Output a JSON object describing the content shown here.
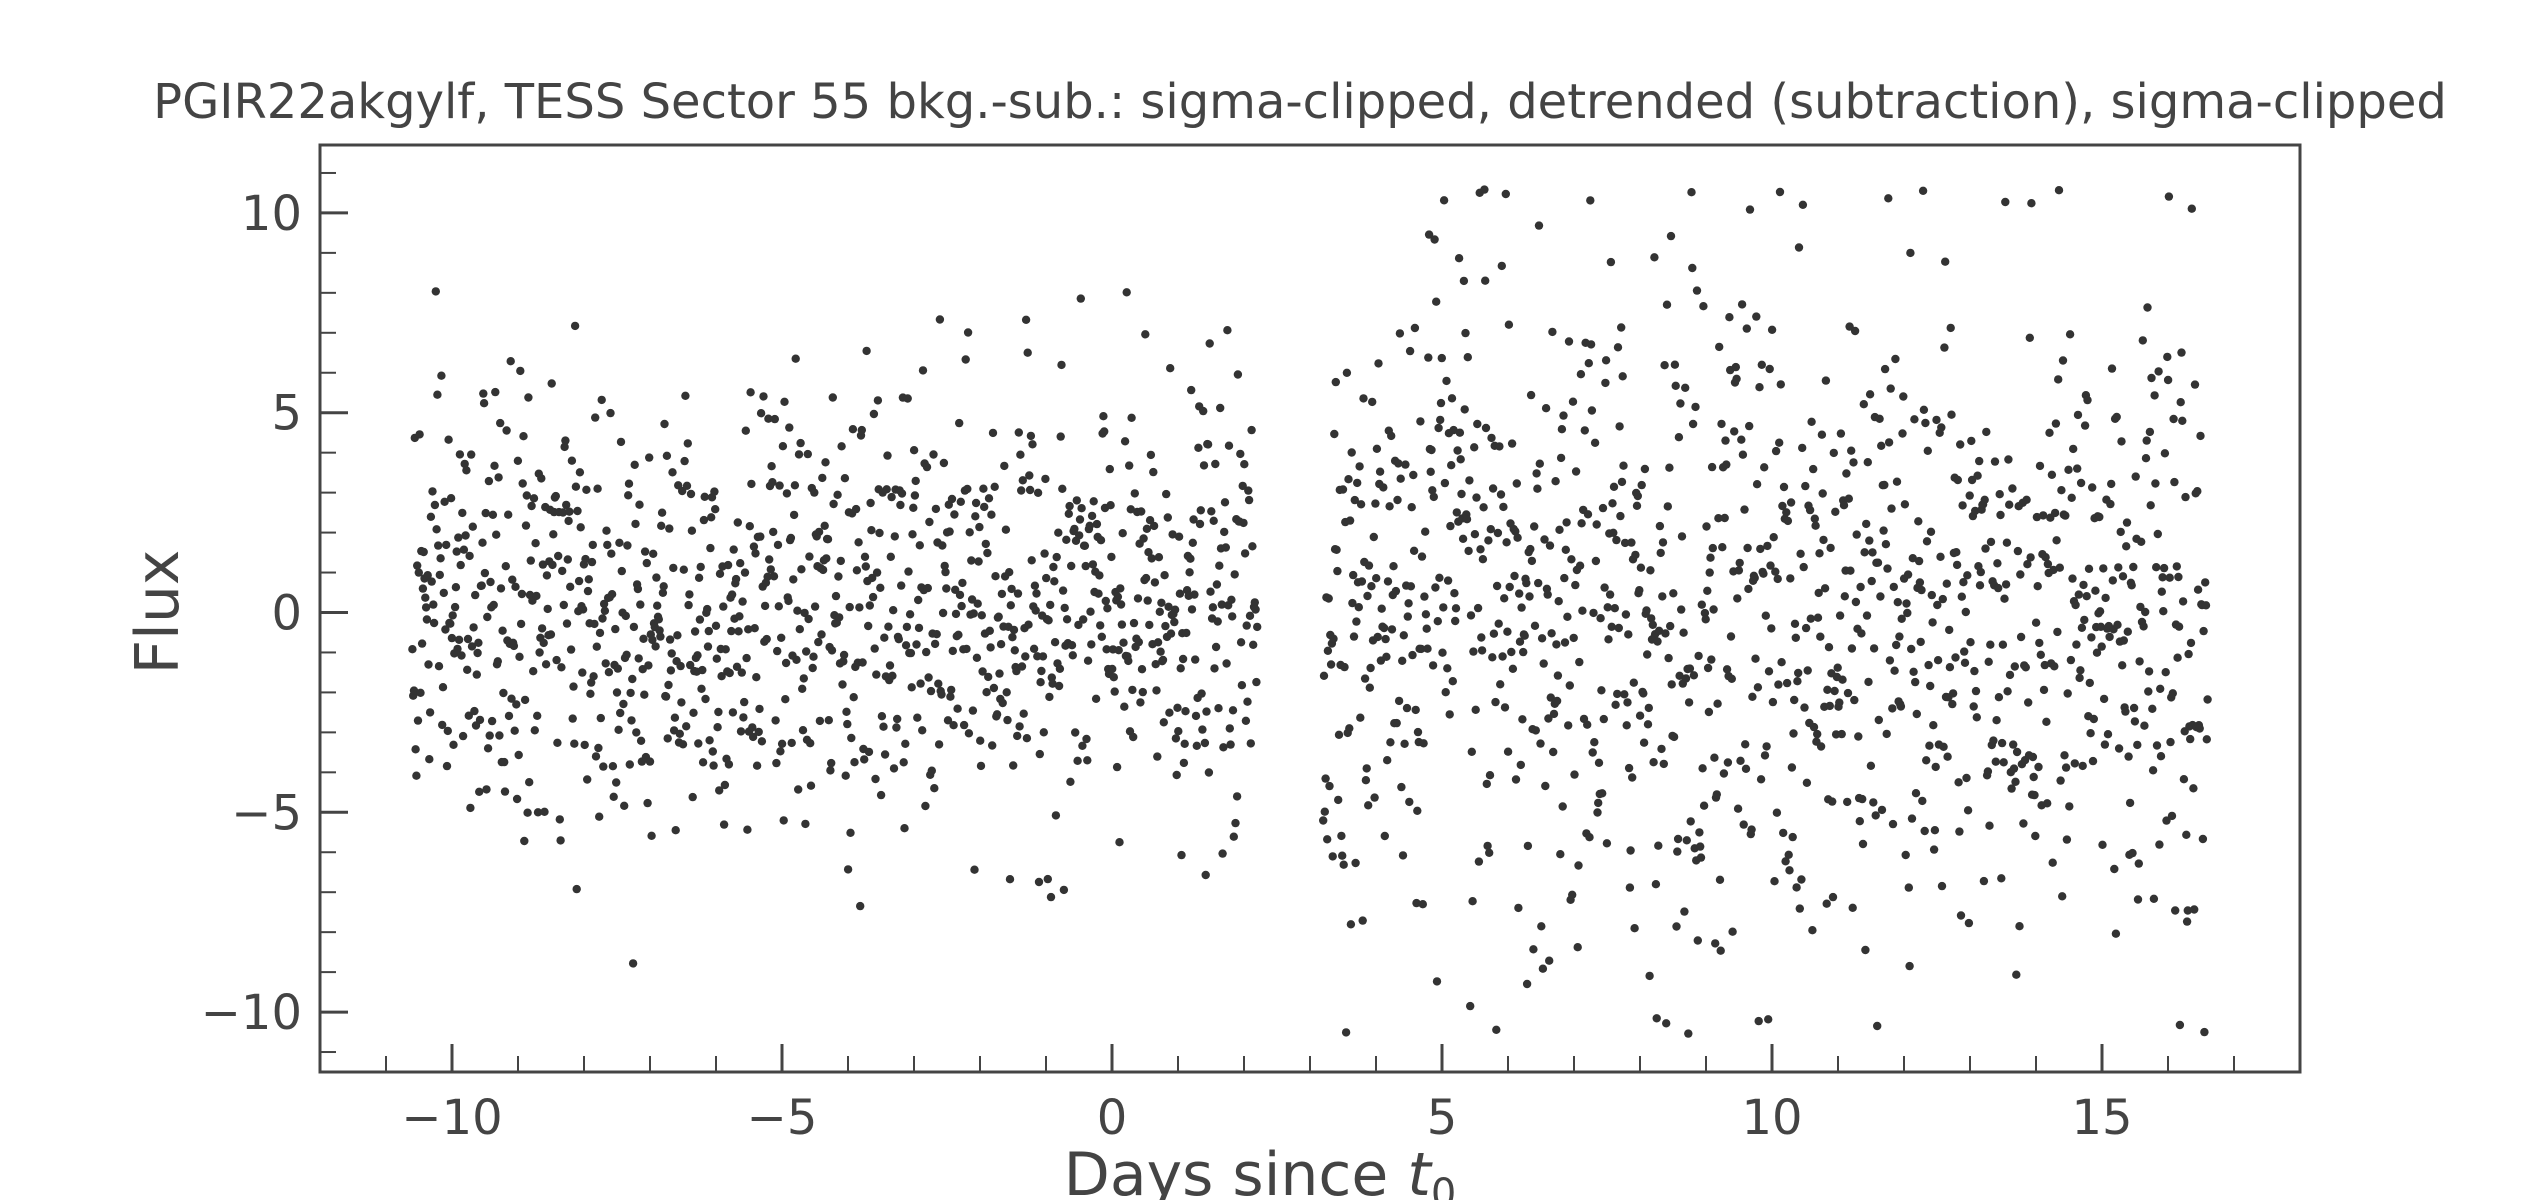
{
  "chart_data": {
    "type": "scatter",
    "title": "PGIR22akgylf, TESS Sector 55 bkg.-sub.: sigma-clipped, detrended (subtraction), sigma-clipped",
    "xlabel_text": "Days since ",
    "xlabel_var": "t",
    "xlabel_sub": "0",
    "ylabel": "Flux",
    "xlim": [
      -12,
      18
    ],
    "ylim": [
      -11.5,
      11.7
    ],
    "x_ticks": [
      -10,
      -5,
      0,
      5,
      10,
      15
    ],
    "x_tick_labels": [
      "−10",
      "−5",
      "0",
      "5",
      "10",
      "15"
    ],
    "y_ticks": [
      -10,
      -5,
      0,
      5,
      10
    ],
    "y_tick_labels": [
      "−10",
      "−5",
      "0",
      "5",
      "10"
    ],
    "grid": false,
    "marker_color": "#333333",
    "axis_color": "#444444",
    "series": [
      {
        "segments": [
          {
            "x_start": -10.6,
            "x_end": 2.2,
            "n": 1050,
            "std": 2.7,
            "y_min": -10.3,
            "y_max": 9.1
          },
          {
            "x_start": 3.2,
            "x_end": 16.6,
            "n": 1120,
            "std": 4.2,
            "y_min": -10.6,
            "y_max": 10.6
          }
        ]
      }
    ]
  }
}
